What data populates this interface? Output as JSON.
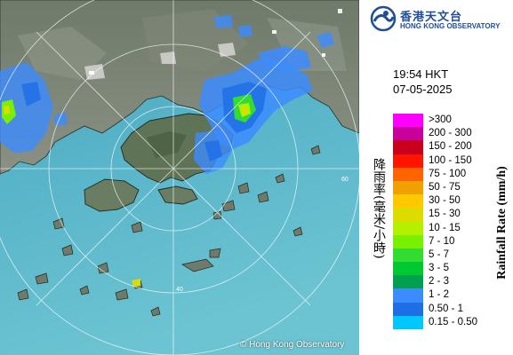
{
  "org": {
    "name_cn": "香港天文台",
    "name_en": "HONG KONG OBSERVATORY"
  },
  "timestamp": {
    "time": "19:54 HKT",
    "date": "07-05-2025"
  },
  "map": {
    "range_ring_label": "60",
    "range_ring_label_inner": "40",
    "copyright": "© Hong Kong Observatory"
  },
  "legend": {
    "label_cn": "降雨率(毫米/小時)",
    "label_en": "Rainfall Rate (mm/h)",
    "items": [
      {
        "label": ">300",
        "color": "#ff00ff"
      },
      {
        "label": "200 - 300",
        "color": "#c8009c"
      },
      {
        "label": "150 - 200",
        "color": "#c8001e"
      },
      {
        "label": "100 - 150",
        "color": "#ff1400"
      },
      {
        "label": "75 - 100",
        "color": "#ff6400"
      },
      {
        "label": "50 - 75",
        "color": "#f0a000"
      },
      {
        "label": "30 - 50",
        "color": "#ffc800"
      },
      {
        "label": "15 - 30",
        "color": "#dcdc00"
      },
      {
        "label": "10 - 15",
        "color": "#b4f000"
      },
      {
        "label": "7 - 10",
        "color": "#78f000"
      },
      {
        "label": "5 - 7",
        "color": "#32dc32"
      },
      {
        "label": "3 - 5",
        "color": "#00c832"
      },
      {
        "label": "2 - 3",
        "color": "#00a050"
      },
      {
        "label": "1 - 2",
        "color": "#3c8cff"
      },
      {
        "label": "0.50 - 1",
        "color": "#1e6ee6"
      },
      {
        "label": "0.15 - 0.50",
        "color": "#00c8ff"
      }
    ]
  }
}
